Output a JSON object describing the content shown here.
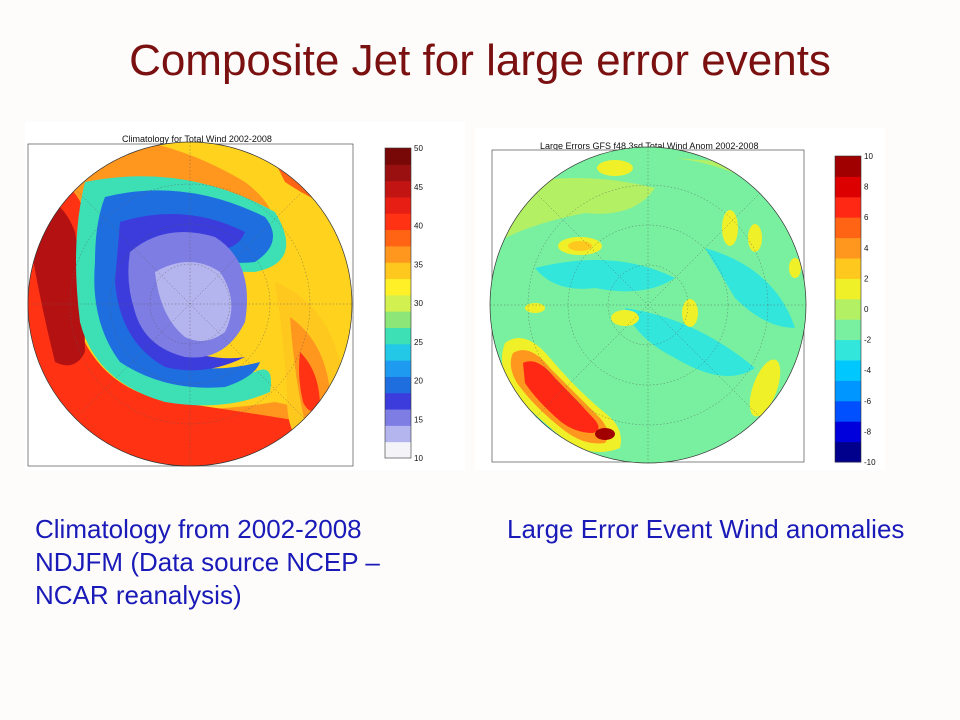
{
  "title": "Composite Jet for large error events",
  "left_panel": {
    "map_title": "Climatology for Total Wind 2002-2008",
    "colorbar_ticks": [
      "50",
      "45",
      "40",
      "35",
      "30",
      "25",
      "20",
      "15",
      "10"
    ],
    "colors": [
      "#f4f4f8",
      "#b4b4ee",
      "#7d7de4",
      "#3c3cdc",
      "#1e6ee0",
      "#1e9bf0",
      "#23c8e6",
      "#3ce0b4",
      "#8ce678",
      "#d2f050",
      "#fff028",
      "#ffc81e",
      "#ff961e",
      "#ff6414",
      "#ff3214",
      "#e61e14",
      "#c31414",
      "#9a0f0f",
      "#780808"
    ]
  },
  "right_panel": {
    "map_title": "Large Errors GFS f48 3sd Total Wind Anom 2002-2008",
    "colorbar_ticks": [
      "10",
      "8",
      "6",
      "4",
      "2",
      "0",
      "-2",
      "-4",
      "-6",
      "-8",
      "-10"
    ],
    "colors": [
      "#00008c",
      "#0000dc",
      "#0050ff",
      "#0096ff",
      "#00c8ff",
      "#32e6dc",
      "#78f0a0",
      "#b4f064",
      "#f0f028",
      "#ffc81e",
      "#ff961e",
      "#ff6414",
      "#ff2814",
      "#dc0000",
      "#a00000"
    ]
  },
  "caption_left": "Climatology from 2002-2008 NDJFM (Data source NCEP – NCAR reanalysis)",
  "caption_right": "Large Error Event Wind anomalies"
}
